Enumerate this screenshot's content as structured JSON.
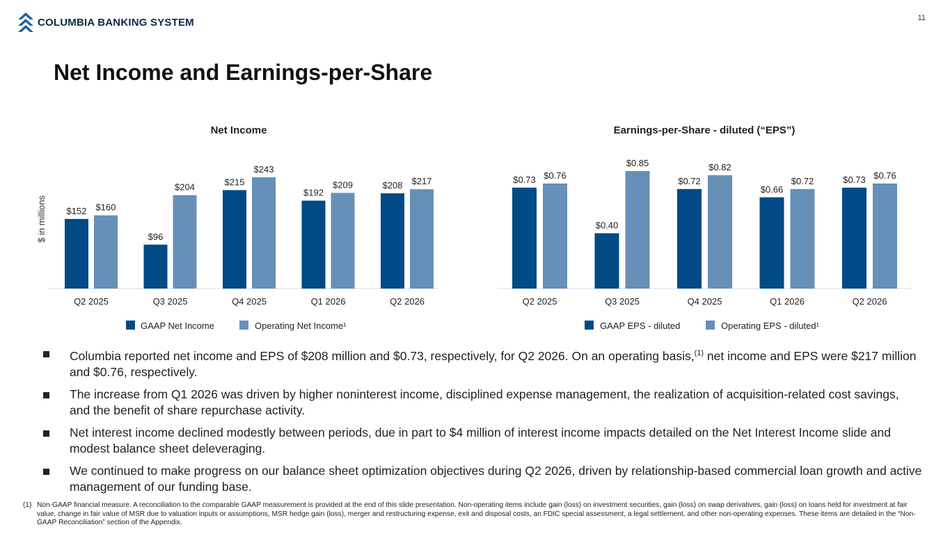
{
  "header": {
    "company": "COLUMBIA BANKING SYSTEM",
    "page_number": "11",
    "title": "Net Income and Earnings-per-Share"
  },
  "colors": {
    "gaap": "#004a86",
    "operating": "#6690b8",
    "axis": "#333333"
  },
  "chart_data": [
    {
      "type": "bar",
      "title": "Net Income",
      "ylabel": "$ in millions",
      "categories": [
        "Q2 2025",
        "Q3 2025",
        "Q4 2025",
        "Q1 2026",
        "Q2 2026"
      ],
      "series": [
        {
          "name": "GAAP Net Income",
          "values": [
            152,
            96,
            215,
            192,
            208
          ],
          "labels": [
            "$152",
            "$96",
            "$215",
            "$192",
            "$208"
          ]
        },
        {
          "name": "Operating Net Income¹",
          "values": [
            160,
            204,
            243,
            209,
            217
          ],
          "labels": [
            "$160",
            "$204",
            "$243",
            "$209",
            "$217"
          ]
        }
      ],
      "ylim": [
        0,
        243
      ],
      "grid": false,
      "legend": "bottom"
    },
    {
      "type": "bar",
      "title": "Earnings-per-Share - diluted (“EPS”)",
      "categories": [
        "Q2 2025",
        "Q3 2025",
        "Q4 2025",
        "Q1 2026",
        "Q2 2026"
      ],
      "series": [
        {
          "name": "GAAP EPS - diluted",
          "values": [
            0.73,
            0.4,
            0.72,
            0.66,
            0.73
          ],
          "labels": [
            "$0.73",
            "$0.40",
            "$0.72",
            "$0.66",
            "$0.73"
          ]
        },
        {
          "name": "Operating EPS - diluted¹",
          "values": [
            0.76,
            0.85,
            0.82,
            0.72,
            0.76
          ],
          "labels": [
            "$0.76",
            "$0.85",
            "$0.82",
            "$0.72",
            "$0.76"
          ]
        }
      ],
      "ylim": [
        0,
        0.85
      ],
      "grid": false,
      "legend": "bottom"
    }
  ],
  "bullets": [
    {
      "before": "Columbia reported net income and EPS of $208 million and $0.73, respectively, for Q2 2026. On an operating basis,",
      "sup": "(1)",
      "after": " net income and EPS were $217 million and $0.76, respectively."
    },
    {
      "before": "The increase from Q1 2026 was driven by higher noninterest income, disciplined expense management, the realization of acquisition-related cost savings, and the benefit of share repurchase activity.",
      "sup": "",
      "after": ""
    },
    {
      "before": "Net interest income declined modestly between periods, due in part to $4 million of interest income impacts detailed on the Net Interest Income slide and modest balance sheet deleveraging.",
      "sup": "",
      "after": ""
    },
    {
      "before": "We continued to make progress on our balance sheet optimization objectives during Q2 2026, driven by relationship-based commercial loan growth and active management of our funding base.",
      "sup": "",
      "after": ""
    }
  ],
  "footnote": {
    "number": "(1)",
    "text": "Non-GAAP financial measure. A reconciliation to the comparable GAAP measurement is provided at the end of this slide presentation. Non-operating items include gain (loss) on investment securities, gain (loss) on swap derivatives, gain (loss) on loans held for investment at fair value, change in fair value of MSR due to valuation inputs or assumptions, MSR hedge gain (loss), merger and restructuring expense, exit and disposal costs, an FDIC special assessment, a legal settlement, and other non-operating expenses. These items are detailed in the “Non-GAAP Reconciliation” section of the Appendix."
  }
}
